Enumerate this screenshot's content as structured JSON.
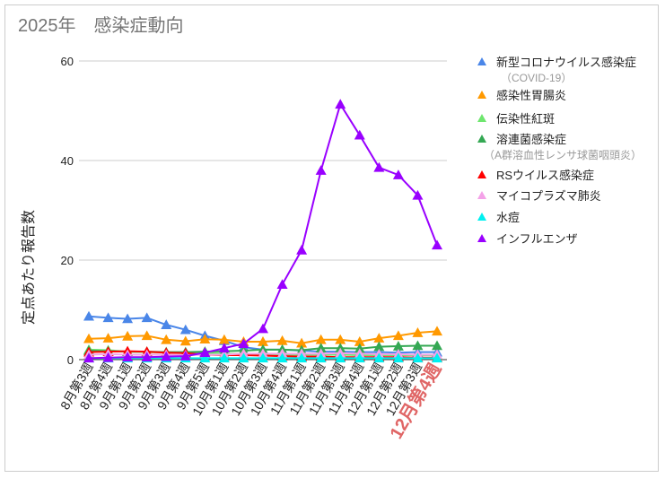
{
  "chart_data": {
    "type": "line",
    "title": "2025年　感染症動向",
    "ylabel": "定点あたり報告数",
    "xlabel": "",
    "ylim": [
      0,
      60
    ],
    "yticks": [
      0,
      20,
      40,
      60
    ],
    "grid": true,
    "legend_position": "right",
    "marker": "triangle",
    "categories": [
      "8月第3週",
      "8月第4週",
      "9月第1週",
      "9月第2週",
      "9月第3週",
      "9月第4週",
      "9月第5週",
      "10月第1週",
      "10月第2週",
      "10月第3週",
      "10月第4週",
      "11月第1週",
      "11月第2週",
      "11月第3週",
      "11月第4週",
      "12月第1週",
      "12月第2週",
      "12月第3週",
      "12月第4週"
    ],
    "highlight_category": {
      "label": "12月第4週",
      "color": "#e06666"
    },
    "series": [
      {
        "name": "新型コロナウイルス感染症",
        "subname": "（COVID-19）",
        "color": "#4a86e8",
        "values": [
          8.7,
          8.4,
          8.2,
          8.4,
          7.0,
          6.0,
          4.8,
          3.8,
          2.5,
          2.0,
          2.0,
          1.8,
          1.6,
          1.6,
          1.5,
          1.5,
          1.4,
          1.5,
          1.5
        ]
      },
      {
        "name": "感染性胃腸炎",
        "color": "#ff9900",
        "values": [
          4.2,
          4.3,
          4.7,
          4.8,
          4.0,
          3.7,
          4.1,
          4.0,
          3.6,
          3.6,
          3.8,
          3.3,
          4.0,
          4.0,
          3.6,
          4.3,
          4.8,
          5.4,
          5.7
        ]
      },
      {
        "name": "伝染性紅斑",
        "color": "#6ee66e",
        "values": [
          2.0,
          1.9,
          1.6,
          1.5,
          1.4,
          1.3,
          1.3,
          1.2,
          1.1,
          1.1,
          1.0,
          1.0,
          1.0,
          1.0,
          0.9,
          0.9,
          0.9,
          0.9,
          0.9
        ]
      },
      {
        "name": "溶連菌感染症",
        "subname": "（A群溶血性レンサ球菌咽頭炎）",
        "color": "#34a853",
        "values": [
          1.8,
          1.7,
          1.6,
          1.6,
          1.5,
          1.5,
          1.6,
          1.7,
          1.8,
          2.0,
          2.0,
          1.9,
          2.3,
          2.3,
          2.2,
          2.6,
          2.7,
          2.8,
          2.8
        ]
      },
      {
        "name": "RSウイルス感染症",
        "color": "#ff0000",
        "values": [
          1.5,
          1.6,
          1.7,
          1.6,
          1.4,
          1.3,
          1.0,
          0.9,
          0.9,
          0.8,
          0.7,
          0.6,
          0.6,
          0.5,
          0.5,
          0.5,
          0.5,
          0.4,
          0.4
        ]
      },
      {
        "name": "マイコプラズマ肺炎",
        "color": "#f4a2e8",
        "values": [
          1.0,
          1.1,
          1.0,
          1.0,
          1.0,
          0.9,
          1.0,
          1.0,
          1.2,
          1.2,
          1.2,
          1.2,
          1.2,
          1.3,
          1.2,
          1.1,
          1.1,
          1.0,
          1.0
        ]
      },
      {
        "name": "水痘",
        "color": "#00f0f0",
        "values": [
          0.3,
          0.3,
          0.3,
          0.3,
          0.3,
          0.3,
          0.3,
          0.3,
          0.3,
          0.3,
          0.3,
          0.3,
          0.3,
          0.3,
          0.3,
          0.3,
          0.3,
          0.3,
          0.3
        ]
      },
      {
        "name": "インフルエンザ",
        "color": "#9900ff",
        "values": [
          0.3,
          0.4,
          0.5,
          0.5,
          0.6,
          0.7,
          1.4,
          2.3,
          3.2,
          6.2,
          15.1,
          22.0,
          38.0,
          51.3,
          45.1,
          38.6,
          37.1,
          33.0,
          23.0
        ]
      }
    ]
  }
}
